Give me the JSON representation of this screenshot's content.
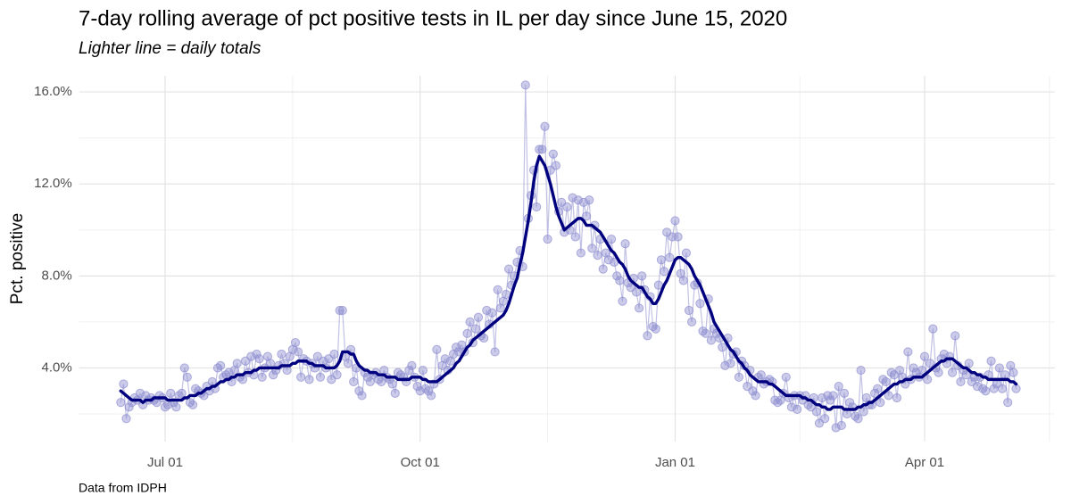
{
  "chart_data": {
    "type": "line",
    "title": "7-day rolling average of pct positive tests in IL per day since June 15, 2020",
    "subtitle": "Lighter line = daily totals",
    "y_label": "Pct. positive",
    "caption": "Data from IDPH",
    "xlim": [
      "2020-05-31",
      "2021-05-18"
    ],
    "xticks": [
      {
        "value": "2020-07-01",
        "label": "Jul 01"
      },
      {
        "value": "2020-10-01",
        "label": "Oct 01"
      },
      {
        "value": "2021-01-01",
        "label": "Jan 01"
      },
      {
        "value": "2021-04-01",
        "label": "Apr 01"
      }
    ],
    "xticks_minor": [
      "2020-08-16",
      "2020-11-16",
      "2021-02-15",
      "2021-05-16"
    ],
    "ylim": [
      0.8,
      16.7
    ],
    "yticks": [
      {
        "value": 4,
        "label": "4.0%"
      },
      {
        "value": 8,
        "label": "8.0%"
      },
      {
        "value": 12,
        "label": "12.0%"
      },
      {
        "value": 16,
        "label": "16.0%"
      }
    ],
    "yticks_minor": [
      2,
      6,
      10,
      14
    ],
    "grid": true,
    "x": [
      "2020-06-15",
      "2020-06-16",
      "2020-06-17",
      "2020-06-18",
      "2020-06-19",
      "2020-06-20",
      "2020-06-21",
      "2020-06-22",
      "2020-06-23",
      "2020-06-24",
      "2020-06-25",
      "2020-06-26",
      "2020-06-27",
      "2020-06-28",
      "2020-06-29",
      "2020-06-30",
      "2020-07-01",
      "2020-07-02",
      "2020-07-03",
      "2020-07-04",
      "2020-07-05",
      "2020-07-06",
      "2020-07-07",
      "2020-07-08",
      "2020-07-09",
      "2020-07-10",
      "2020-07-11",
      "2020-07-12",
      "2020-07-13",
      "2020-07-14",
      "2020-07-15",
      "2020-07-16",
      "2020-07-17",
      "2020-07-18",
      "2020-07-19",
      "2020-07-20",
      "2020-07-21",
      "2020-07-22",
      "2020-07-23",
      "2020-07-24",
      "2020-07-25",
      "2020-07-26",
      "2020-07-27",
      "2020-07-28",
      "2020-07-29",
      "2020-07-30",
      "2020-07-31",
      "2020-08-01",
      "2020-08-02",
      "2020-08-03",
      "2020-08-04",
      "2020-08-05",
      "2020-08-06",
      "2020-08-07",
      "2020-08-08",
      "2020-08-09",
      "2020-08-10",
      "2020-08-11",
      "2020-08-12",
      "2020-08-13",
      "2020-08-14",
      "2020-08-15",
      "2020-08-16",
      "2020-08-17",
      "2020-08-18",
      "2020-08-19",
      "2020-08-20",
      "2020-08-21",
      "2020-08-22",
      "2020-08-23",
      "2020-08-24",
      "2020-08-25",
      "2020-08-26",
      "2020-08-27",
      "2020-08-28",
      "2020-08-29",
      "2020-08-30",
      "2020-08-31",
      "2020-09-01",
      "2020-09-02",
      "2020-09-03",
      "2020-09-04",
      "2020-09-05",
      "2020-09-06",
      "2020-09-07",
      "2020-09-08",
      "2020-09-09",
      "2020-09-10",
      "2020-09-11",
      "2020-09-12",
      "2020-09-13",
      "2020-09-14",
      "2020-09-15",
      "2020-09-16",
      "2020-09-17",
      "2020-09-18",
      "2020-09-19",
      "2020-09-20",
      "2020-09-21",
      "2020-09-22",
      "2020-09-23",
      "2020-09-24",
      "2020-09-25",
      "2020-09-26",
      "2020-09-27",
      "2020-09-28",
      "2020-09-29",
      "2020-09-30",
      "2020-10-01",
      "2020-10-02",
      "2020-10-03",
      "2020-10-04",
      "2020-10-05",
      "2020-10-06",
      "2020-10-07",
      "2020-10-08",
      "2020-10-09",
      "2020-10-10",
      "2020-10-11",
      "2020-10-12",
      "2020-10-13",
      "2020-10-14",
      "2020-10-15",
      "2020-10-16",
      "2020-10-17",
      "2020-10-18",
      "2020-10-19",
      "2020-10-20",
      "2020-10-21",
      "2020-10-22",
      "2020-10-23",
      "2020-10-24",
      "2020-10-25",
      "2020-10-26",
      "2020-10-27",
      "2020-10-28",
      "2020-10-29",
      "2020-10-30",
      "2020-10-31",
      "2020-11-01",
      "2020-11-02",
      "2020-11-03",
      "2020-11-04",
      "2020-11-05",
      "2020-11-06",
      "2020-11-07",
      "2020-11-08",
      "2020-11-09",
      "2020-11-10",
      "2020-11-11",
      "2020-11-12",
      "2020-11-13",
      "2020-11-14",
      "2020-11-15",
      "2020-11-16",
      "2020-11-17",
      "2020-11-18",
      "2020-11-19",
      "2020-11-20",
      "2020-11-21",
      "2020-11-22",
      "2020-11-23",
      "2020-11-24",
      "2020-11-25",
      "2020-11-26",
      "2020-11-27",
      "2020-11-28",
      "2020-11-29",
      "2020-11-30",
      "2020-12-01",
      "2020-12-02",
      "2020-12-03",
      "2020-12-04",
      "2020-12-05",
      "2020-12-06",
      "2020-12-07",
      "2020-12-08",
      "2020-12-09",
      "2020-12-10",
      "2020-12-11",
      "2020-12-12",
      "2020-12-13",
      "2020-12-14",
      "2020-12-15",
      "2020-12-16",
      "2020-12-17",
      "2020-12-18",
      "2020-12-19",
      "2020-12-20",
      "2020-12-21",
      "2020-12-22",
      "2020-12-23",
      "2020-12-24",
      "2020-12-25",
      "2020-12-26",
      "2020-12-27",
      "2020-12-28",
      "2020-12-29",
      "2020-12-30",
      "2020-12-31",
      "2021-01-01",
      "2021-01-02",
      "2021-01-03",
      "2021-01-04",
      "2021-01-05",
      "2021-01-06",
      "2021-01-07",
      "2021-01-08",
      "2021-01-09",
      "2021-01-10",
      "2021-01-11",
      "2021-01-12",
      "2021-01-13",
      "2021-01-14",
      "2021-01-15",
      "2021-01-16",
      "2021-01-17",
      "2021-01-18",
      "2021-01-19",
      "2021-01-20",
      "2021-01-21",
      "2021-01-22",
      "2021-01-23",
      "2021-01-24",
      "2021-01-25",
      "2021-01-26",
      "2021-01-27",
      "2021-01-28",
      "2021-01-29",
      "2021-01-30",
      "2021-01-31",
      "2021-02-01",
      "2021-02-02",
      "2021-02-03",
      "2021-02-04",
      "2021-02-05",
      "2021-02-06",
      "2021-02-07",
      "2021-02-08",
      "2021-02-09",
      "2021-02-10",
      "2021-02-11",
      "2021-02-12",
      "2021-02-13",
      "2021-02-14",
      "2021-02-15",
      "2021-02-16",
      "2021-02-17",
      "2021-02-18",
      "2021-02-19",
      "2021-02-20",
      "2021-02-21",
      "2021-02-22",
      "2021-02-23",
      "2021-02-24",
      "2021-02-25",
      "2021-02-26",
      "2021-02-27",
      "2021-02-28",
      "2021-03-01",
      "2021-03-02",
      "2021-03-03",
      "2021-03-04",
      "2021-03-05",
      "2021-03-06",
      "2021-03-07",
      "2021-03-08",
      "2021-03-09",
      "2021-03-10",
      "2021-03-11",
      "2021-03-12",
      "2021-03-13",
      "2021-03-14",
      "2021-03-15",
      "2021-03-16",
      "2021-03-17",
      "2021-03-18",
      "2021-03-19",
      "2021-03-20",
      "2021-03-21",
      "2021-03-22",
      "2021-03-23",
      "2021-03-24",
      "2021-03-25",
      "2021-03-26",
      "2021-03-27",
      "2021-03-28",
      "2021-03-29",
      "2021-03-30",
      "2021-03-31",
      "2021-04-01",
      "2021-04-02",
      "2021-04-03",
      "2021-04-04",
      "2021-04-05",
      "2021-04-06",
      "2021-04-07",
      "2021-04-08",
      "2021-04-09",
      "2021-04-10",
      "2021-04-11",
      "2021-04-12",
      "2021-04-13",
      "2021-04-14",
      "2021-04-15",
      "2021-04-16",
      "2021-04-17",
      "2021-04-18",
      "2021-04-19",
      "2021-04-20",
      "2021-04-21",
      "2021-04-22",
      "2021-04-23",
      "2021-04-24",
      "2021-04-25",
      "2021-04-26",
      "2021-04-27",
      "2021-04-28",
      "2021-04-29",
      "2021-04-30",
      "2021-05-01",
      "2021-05-02",
      "2021-05-03",
      "2021-05-04"
    ],
    "series": [
      {
        "color": "#8e8ed0",
        "markers": true,
        "values": [
          2.5,
          3.3,
          1.8,
          2.3,
          2.5,
          2.7,
          2.6,
          2.9,
          2.4,
          2.8,
          2.6,
          2.7,
          2.6,
          2.5,
          2.8,
          2.7,
          2.3,
          2.4,
          2.9,
          2.5,
          2.3,
          2.8,
          2.9,
          4.0,
          3.6,
          2.5,
          2.4,
          3.1,
          3.0,
          2.9,
          2.8,
          3.2,
          3.0,
          3.4,
          3.1,
          4.0,
          4.1,
          3.6,
          3.7,
          3.8,
          3.4,
          3.9,
          4.2,
          3.6,
          3.5,
          4.3,
          3.8,
          4.5,
          3.7,
          4.6,
          4.4,
          3.6,
          4.0,
          4.5,
          4.2,
          3.7,
          3.9,
          4.1,
          4.6,
          4.2,
          3.9,
          4.5,
          4.8,
          5.1,
          4.7,
          3.6,
          4.4,
          4.3,
          3.5,
          4.2,
          4.0,
          4.5,
          3.6,
          4.3,
          4.0,
          4.4,
          3.5,
          4.6,
          3.7,
          6.5,
          6.5,
          4.5,
          4.2,
          4.8,
          3.4,
          4.0,
          3.0,
          2.8,
          3.8,
          3.6,
          3.4,
          3.7,
          3.8,
          3.5,
          3.4,
          3.9,
          3.6,
          3.5,
          3.3,
          2.9,
          3.8,
          3.7,
          3.6,
          3.4,
          3.9,
          4.1,
          3.6,
          3.2,
          3.0,
          3.9,
          3.1,
          3.0,
          2.8,
          3.3,
          4.8,
          3.5,
          4.1,
          4.4,
          3.9,
          4.3,
          4.6,
          4.9,
          4.7,
          5.0,
          4.7,
          5.5,
          6.0,
          5.1,
          5.7,
          6.2,
          5.4,
          5.3,
          6.5,
          5.9,
          6.4,
          4.7,
          7.4,
          6.6,
          6.9,
          7.2,
          8.3,
          7.6,
          8.0,
          8.6,
          9.1,
          8.4,
          16.3,
          10.5,
          11.5,
          12.6,
          11.0,
          13.5,
          13.5,
          14.5,
          9.6,
          12.6,
          13.3,
          12.8,
          10.8,
          11.2,
          9.9,
          11.0,
          10.0,
          11.4,
          9.7,
          11.3,
          9.0,
          11.2,
          10.6,
          11.3,
          9.2,
          10.2,
          8.9,
          9.6,
          8.3,
          9.0,
          8.7,
          9.6,
          8.6,
          8.0,
          7.8,
          6.9,
          9.4,
          7.7,
          7.5,
          7.9,
          7.3,
          6.6,
          8.0,
          7.4,
          5.4,
          7.1,
          5.8,
          5.7,
          7.6,
          8.7,
          8.2,
          9.9,
          8.8,
          9.7,
          10.4,
          9.7,
          8.1,
          7.8,
          9.0,
          6.5,
          6.0,
          7.6,
          7.7,
          6.8,
          5.6,
          5.5,
          7.0,
          5.2,
          5.7,
          5.5,
          5.3,
          4.9,
          4.1,
          5.3,
          4.2,
          4.6,
          4.7,
          3.6,
          4.3,
          4.1,
          3.2,
          3.9,
          3.0,
          2.8,
          3.6,
          3.7,
          3.3,
          3.4,
          3.5,
          3.4,
          2.6,
          2.5,
          2.6,
          2.9,
          3.6,
          2.7,
          2.3,
          2.8,
          2.2,
          2.8,
          2.6,
          2.8,
          2.4,
          2.3,
          2.7,
          2.1,
          1.6,
          2.7,
          1.8,
          2.8,
          2.6,
          2.8,
          1.4,
          3.2,
          1.5,
          2.9,
          2.0,
          2.5,
          2.3,
          1.9,
          1.8,
          3.9,
          2.1,
          2.7,
          2.4,
          2.4,
          2.9,
          3.1,
          2.5,
          3.5,
          3.4,
          2.8,
          3.8,
          3.7,
          2.7,
          3.9,
          3.6,
          3.3,
          4.7,
          3.5,
          4.0,
          3.8,
          3.6,
          3.9,
          4.5,
          3.5,
          4.2,
          5.7,
          4.0,
          3.8,
          4.4,
          4.6,
          4.2,
          4.5,
          3.8,
          5.4,
          4.1,
          3.4,
          3.9,
          3.7,
          4.2,
          3.4,
          3.6,
          3.2,
          3.6,
          3.1,
          3.0,
          3.7,
          4.3,
          3.1,
          3.3,
          4.0,
          3.1,
          3.7,
          2.5,
          4.1,
          3.8,
          3.1
        ]
      },
      {
        "color": "#00007f",
        "values": [
          3.0,
          2.9,
          2.8,
          2.7,
          2.6,
          2.6,
          2.6,
          2.6,
          2.5,
          2.6,
          2.6,
          2.6,
          2.7,
          2.7,
          2.7,
          2.7,
          2.7,
          2.6,
          2.6,
          2.6,
          2.6,
          2.6,
          2.6,
          2.7,
          2.7,
          2.8,
          2.8,
          2.8,
          2.9,
          2.9,
          3.0,
          3.1,
          3.1,
          3.2,
          3.2,
          3.3,
          3.4,
          3.4,
          3.5,
          3.5,
          3.6,
          3.6,
          3.7,
          3.7,
          3.7,
          3.8,
          3.8,
          3.8,
          3.9,
          3.9,
          4.0,
          4.0,
          4.0,
          4.0,
          4.0,
          4.0,
          4.0,
          4.0,
          4.1,
          4.1,
          4.1,
          4.1,
          4.2,
          4.2,
          4.3,
          4.3,
          4.3,
          4.3,
          4.2,
          4.2,
          4.1,
          4.1,
          4.1,
          4.1,
          4.0,
          4.0,
          4.0,
          4.0,
          4.1,
          4.3,
          4.7,
          4.7,
          4.7,
          4.6,
          4.6,
          4.3,
          4.1,
          4.0,
          3.9,
          3.9,
          3.8,
          3.8,
          3.8,
          3.7,
          3.7,
          3.7,
          3.6,
          3.6,
          3.6,
          3.6,
          3.5,
          3.5,
          3.5,
          3.5,
          3.5,
          3.6,
          3.6,
          3.6,
          3.6,
          3.5,
          3.5,
          3.4,
          3.4,
          3.4,
          3.4,
          3.5,
          3.6,
          3.7,
          3.8,
          3.9,
          4.0,
          4.2,
          4.3,
          4.5,
          4.7,
          4.9,
          5.0,
          5.2,
          5.3,
          5.4,
          5.5,
          5.6,
          5.7,
          5.8,
          5.9,
          6.0,
          6.1,
          6.2,
          6.3,
          6.5,
          6.8,
          7.2,
          7.6,
          7.9,
          8.5,
          9.0,
          9.7,
          10.4,
          11.2,
          12.1,
          12.8,
          13.2,
          13.0,
          12.8,
          12.4,
          12.0,
          11.5,
          11.0,
          10.6,
          10.3,
          10.0,
          10.1,
          10.2,
          10.3,
          10.4,
          10.5,
          10.5,
          10.4,
          10.2,
          10.2,
          10.2,
          10.1,
          10.0,
          9.9,
          9.7,
          9.5,
          9.3,
          9.1,
          9.0,
          8.8,
          8.6,
          8.5,
          8.3,
          8.0,
          7.8,
          7.7,
          7.6,
          7.5,
          7.5,
          7.3,
          7.1,
          7.0,
          6.8,
          6.8,
          7.0,
          7.3,
          7.6,
          7.8,
          8.1,
          8.4,
          8.7,
          8.8,
          8.8,
          8.7,
          8.6,
          8.5,
          8.3,
          8.0,
          7.8,
          7.6,
          7.3,
          7.0,
          6.7,
          6.4,
          6.0,
          5.8,
          5.6,
          5.4,
          5.2,
          5.0,
          4.8,
          4.7,
          4.5,
          4.3,
          4.2,
          4.0,
          3.9,
          3.7,
          3.6,
          3.5,
          3.4,
          3.4,
          3.4,
          3.4,
          3.3,
          3.3,
          3.2,
          3.1,
          3.0,
          2.9,
          2.8,
          2.8,
          2.8,
          2.8,
          2.8,
          2.8,
          2.7,
          2.7,
          2.6,
          2.6,
          2.5,
          2.4,
          2.4,
          2.3,
          2.3,
          2.2,
          2.2,
          2.3,
          2.3,
          2.3,
          2.3,
          2.2,
          2.2,
          2.2,
          2.2,
          2.2,
          2.3,
          2.3,
          2.4,
          2.4,
          2.5,
          2.5,
          2.6,
          2.7,
          2.8,
          2.9,
          3.0,
          3.1,
          3.2,
          3.3,
          3.3,
          3.4,
          3.4,
          3.5,
          3.5,
          3.5,
          3.6,
          3.6,
          3.6,
          3.6,
          3.7,
          3.8,
          3.9,
          4.0,
          4.1,
          4.2,
          4.3,
          4.3,
          4.4,
          4.4,
          4.4,
          4.3,
          4.2,
          4.1,
          4.0,
          4.0,
          3.9,
          3.8,
          3.8,
          3.7,
          3.7,
          3.6,
          3.6,
          3.5,
          3.5,
          3.5,
          3.5,
          3.5,
          3.5,
          3.5,
          3.5,
          3.4,
          3.4,
          3.3
        ]
      }
    ]
  }
}
